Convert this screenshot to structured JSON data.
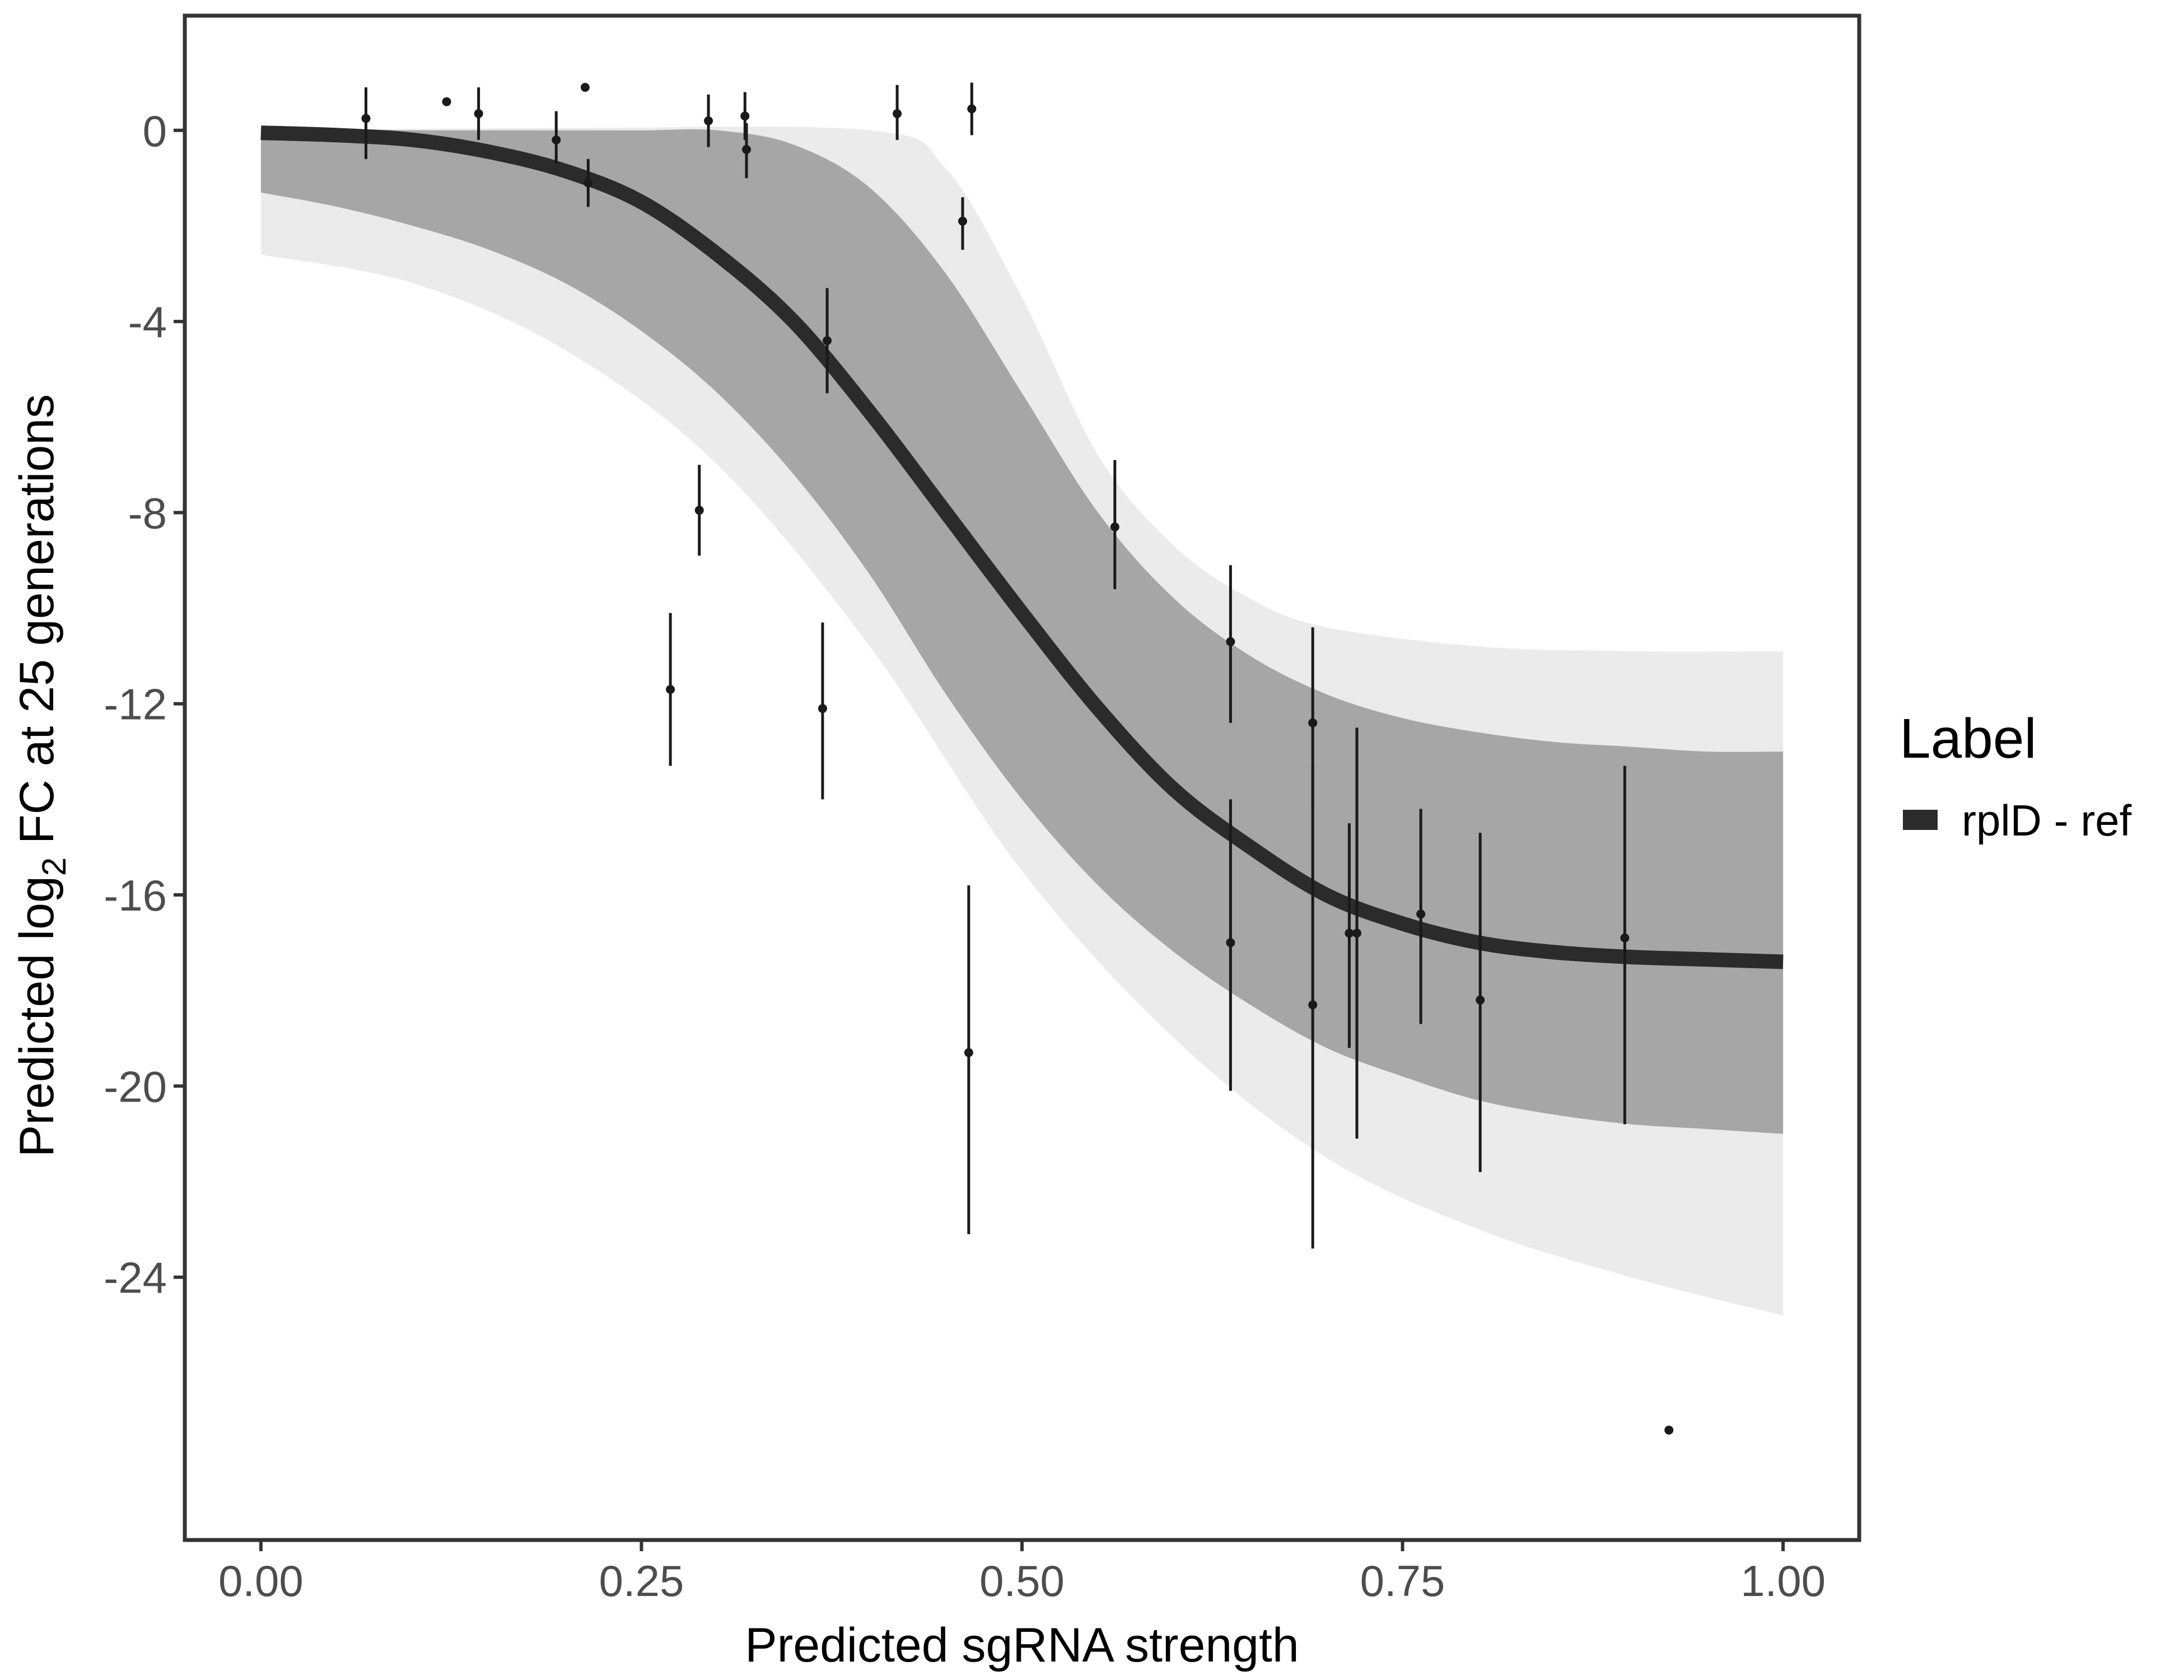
{
  "chart_data": {
    "type": "line",
    "title": "",
    "xlabel": "Predicted sgRNA strength",
    "ylabel": {
      "prefix": "Predicted  log",
      "subscript": "2",
      "suffix": " FC at 25 generations"
    },
    "xlim": [
      -0.05,
      1.05
    ],
    "ylim": [
      -29.5,
      2.4
    ],
    "x_ticks": [
      {
        "value": 0,
        "label": "0.00"
      },
      {
        "value": 0.25,
        "label": "0.25"
      },
      {
        "value": 0.5,
        "label": "0.50"
      },
      {
        "value": 0.75,
        "label": "0.75"
      },
      {
        "value": 1,
        "label": "1.00"
      }
    ],
    "y_ticks": [
      {
        "value": 0,
        "label": "0"
      },
      {
        "value": -4,
        "label": "-4"
      },
      {
        "value": -8,
        "label": "-8"
      },
      {
        "value": -12,
        "label": "-12"
      },
      {
        "value": -16,
        "label": "-16"
      },
      {
        "value": -20,
        "label": "-20"
      },
      {
        "value": -24,
        "label": "-24"
      }
    ],
    "grid": false,
    "legend": {
      "title": "Label",
      "position": "right",
      "entries": [
        {
          "label": "rplD - ref",
          "color": "#2b2b2b"
        }
      ]
    },
    "fit_curve": {
      "name": "rplD - ref",
      "color": "#2b2b2b",
      "points": [
        {
          "x": 0.0,
          "y": -0.05
        },
        {
          "x": 0.05,
          "y": -0.1
        },
        {
          "x": 0.1,
          "y": -0.2
        },
        {
          "x": 0.15,
          "y": -0.45
        },
        {
          "x": 0.2,
          "y": -0.85
        },
        {
          "x": 0.25,
          "y": -1.5
        },
        {
          "x": 0.3,
          "y": -2.6
        },
        {
          "x": 0.35,
          "y": -4.0
        },
        {
          "x": 0.4,
          "y": -5.9
        },
        {
          "x": 0.45,
          "y": -8.0
        },
        {
          "x": 0.5,
          "y": -10.1
        },
        {
          "x": 0.55,
          "y": -12.1
        },
        {
          "x": 0.6,
          "y": -13.8
        },
        {
          "x": 0.65,
          "y": -15.0
        },
        {
          "x": 0.7,
          "y": -16.0
        },
        {
          "x": 0.75,
          "y": -16.6
        },
        {
          "x": 0.8,
          "y": -17.0
        },
        {
          "x": 0.85,
          "y": -17.2
        },
        {
          "x": 0.9,
          "y": -17.3
        },
        {
          "x": 0.95,
          "y": -17.35
        },
        {
          "x": 1.0,
          "y": -17.4
        }
      ]
    },
    "posterior_band": {
      "color": "#a6a6a6",
      "upper": [
        {
          "x": 0.0,
          "y": -0.2
        },
        {
          "x": 0.05,
          "y": 0.0
        },
        {
          "x": 0.1,
          "y": 0.0
        },
        {
          "x": 0.15,
          "y": 0.0
        },
        {
          "x": 0.2,
          "y": 0.0
        },
        {
          "x": 0.25,
          "y": 0.0
        },
        {
          "x": 0.3,
          "y": 0.0
        },
        {
          "x": 0.35,
          "y": -0.3
        },
        {
          "x": 0.4,
          "y": -1.2
        },
        {
          "x": 0.45,
          "y": -3.0
        },
        {
          "x": 0.5,
          "y": -5.5
        },
        {
          "x": 0.55,
          "y": -8.0
        },
        {
          "x": 0.6,
          "y": -9.8
        },
        {
          "x": 0.65,
          "y": -11.0
        },
        {
          "x": 0.7,
          "y": -11.8
        },
        {
          "x": 0.75,
          "y": -12.3
        },
        {
          "x": 0.8,
          "y": -12.6
        },
        {
          "x": 0.85,
          "y": -12.8
        },
        {
          "x": 0.9,
          "y": -12.9
        },
        {
          "x": 0.95,
          "y": -13.0
        },
        {
          "x": 1.0,
          "y": -13.0
        }
      ],
      "lower": [
        {
          "x": 0.0,
          "y": -1.3
        },
        {
          "x": 0.05,
          "y": -1.6
        },
        {
          "x": 0.1,
          "y": -2.0
        },
        {
          "x": 0.15,
          "y": -2.5
        },
        {
          "x": 0.2,
          "y": -3.2
        },
        {
          "x": 0.25,
          "y": -4.2
        },
        {
          "x": 0.3,
          "y": -5.5
        },
        {
          "x": 0.35,
          "y": -7.2
        },
        {
          "x": 0.4,
          "y": -9.3
        },
        {
          "x": 0.45,
          "y": -11.8
        },
        {
          "x": 0.5,
          "y": -14.0
        },
        {
          "x": 0.55,
          "y": -15.8
        },
        {
          "x": 0.6,
          "y": -17.2
        },
        {
          "x": 0.65,
          "y": -18.3
        },
        {
          "x": 0.7,
          "y": -19.2
        },
        {
          "x": 0.75,
          "y": -19.8
        },
        {
          "x": 0.8,
          "y": -20.3
        },
        {
          "x": 0.85,
          "y": -20.6
        },
        {
          "x": 0.9,
          "y": -20.8
        },
        {
          "x": 0.95,
          "y": -20.9
        },
        {
          "x": 1.0,
          "y": -21.0
        }
      ],
      "outer_upper": [
        {
          "x": 0.0,
          "y": 0.0
        },
        {
          "x": 0.2,
          "y": 0.05
        },
        {
          "x": 0.4,
          "y": 0.0
        },
        {
          "x": 0.45,
          "y": -0.8
        },
        {
          "x": 0.5,
          "y": -3.5
        },
        {
          "x": 0.55,
          "y": -6.8
        },
        {
          "x": 0.6,
          "y": -8.7
        },
        {
          "x": 0.65,
          "y": -9.8
        },
        {
          "x": 0.7,
          "y": -10.4
        },
        {
          "x": 0.8,
          "y": -10.8
        },
        {
          "x": 0.9,
          "y": -10.9
        },
        {
          "x": 1.0,
          "y": -10.9
        }
      ],
      "outer_lower": [
        {
          "x": 0.0,
          "y": -2.6
        },
        {
          "x": 0.1,
          "y": -3.2
        },
        {
          "x": 0.2,
          "y": -4.6
        },
        {
          "x": 0.3,
          "y": -7.0
        },
        {
          "x": 0.4,
          "y": -10.8
        },
        {
          "x": 0.5,
          "y": -15.5
        },
        {
          "x": 0.6,
          "y": -19.0
        },
        {
          "x": 0.7,
          "y": -21.5
        },
        {
          "x": 0.8,
          "y": -23.0
        },
        {
          "x": 0.9,
          "y": -24.0
        },
        {
          "x": 1.0,
          "y": -24.8
        }
      ]
    },
    "points": [
      {
        "x": 0.069,
        "y": 0.25,
        "lo": -0.6,
        "hi": 0.9
      },
      {
        "x": 0.122,
        "y": 0.6,
        "lo": 0.6,
        "hi": 0.6
      },
      {
        "x": 0.143,
        "y": 0.35,
        "lo": -0.2,
        "hi": 0.9
      },
      {
        "x": 0.194,
        "y": -0.2,
        "lo": -0.7,
        "hi": 0.4
      },
      {
        "x": 0.213,
        "y": 0.9,
        "lo": 0.9,
        "hi": 0.9
      },
      {
        "x": 0.215,
        "y": -1.1,
        "lo": -1.6,
        "hi": -0.6
      },
      {
        "x": 0.269,
        "y": -11.7,
        "lo": -13.3,
        "hi": -10.1
      },
      {
        "x": 0.288,
        "y": -7.95,
        "lo": -8.9,
        "hi": -7.0
      },
      {
        "x": 0.294,
        "y": 0.2,
        "lo": -0.35,
        "hi": 0.75
      },
      {
        "x": 0.318,
        "y": 0.3,
        "lo": -0.2,
        "hi": 0.8
      },
      {
        "x": 0.319,
        "y": -0.4,
        "lo": -1.0,
        "hi": 0.15
      },
      {
        "x": 0.369,
        "y": -12.1,
        "lo": -14.0,
        "hi": -10.3
      },
      {
        "x": 0.372,
        "y": -4.4,
        "lo": -5.5,
        "hi": -3.3
      },
      {
        "x": 0.418,
        "y": 0.35,
        "lo": -0.2,
        "hi": 0.95
      },
      {
        "x": 0.461,
        "y": -1.9,
        "lo": -2.5,
        "hi": -1.4
      },
      {
        "x": 0.465,
        "y": -19.3,
        "lo": -23.1,
        "hi": -15.8
      },
      {
        "x": 0.467,
        "y": 0.45,
        "lo": -0.1,
        "hi": 1.0
      },
      {
        "x": 0.561,
        "y": -8.3,
        "lo": -9.6,
        "hi": -6.9
      },
      {
        "x": 0.637,
        "y": -10.7,
        "lo": -12.4,
        "hi": -9.1
      },
      {
        "x": 0.637,
        "y": -17.0,
        "lo": -20.1,
        "hi": -14.0
      },
      {
        "x": 0.691,
        "y": -12.4,
        "lo": -14.2,
        "hi": -10.4
      },
      {
        "x": 0.691,
        "y": -18.3,
        "lo": -23.4,
        "hi": -13.3
      },
      {
        "x": 0.715,
        "y": -16.8,
        "lo": -19.2,
        "hi": -14.5
      },
      {
        "x": 0.72,
        "y": -16.8,
        "lo": -21.1,
        "hi": -12.5
      },
      {
        "x": 0.762,
        "y": -16.4,
        "lo": -18.7,
        "hi": -14.2
      },
      {
        "x": 0.801,
        "y": -18.2,
        "lo": -21.8,
        "hi": -14.7
      },
      {
        "x": 0.896,
        "y": -16.9,
        "lo": -20.8,
        "hi": -13.3
      },
      {
        "x": 0.925,
        "y": -27.2,
        "lo": -27.2,
        "hi": -27.2
      }
    ]
  }
}
